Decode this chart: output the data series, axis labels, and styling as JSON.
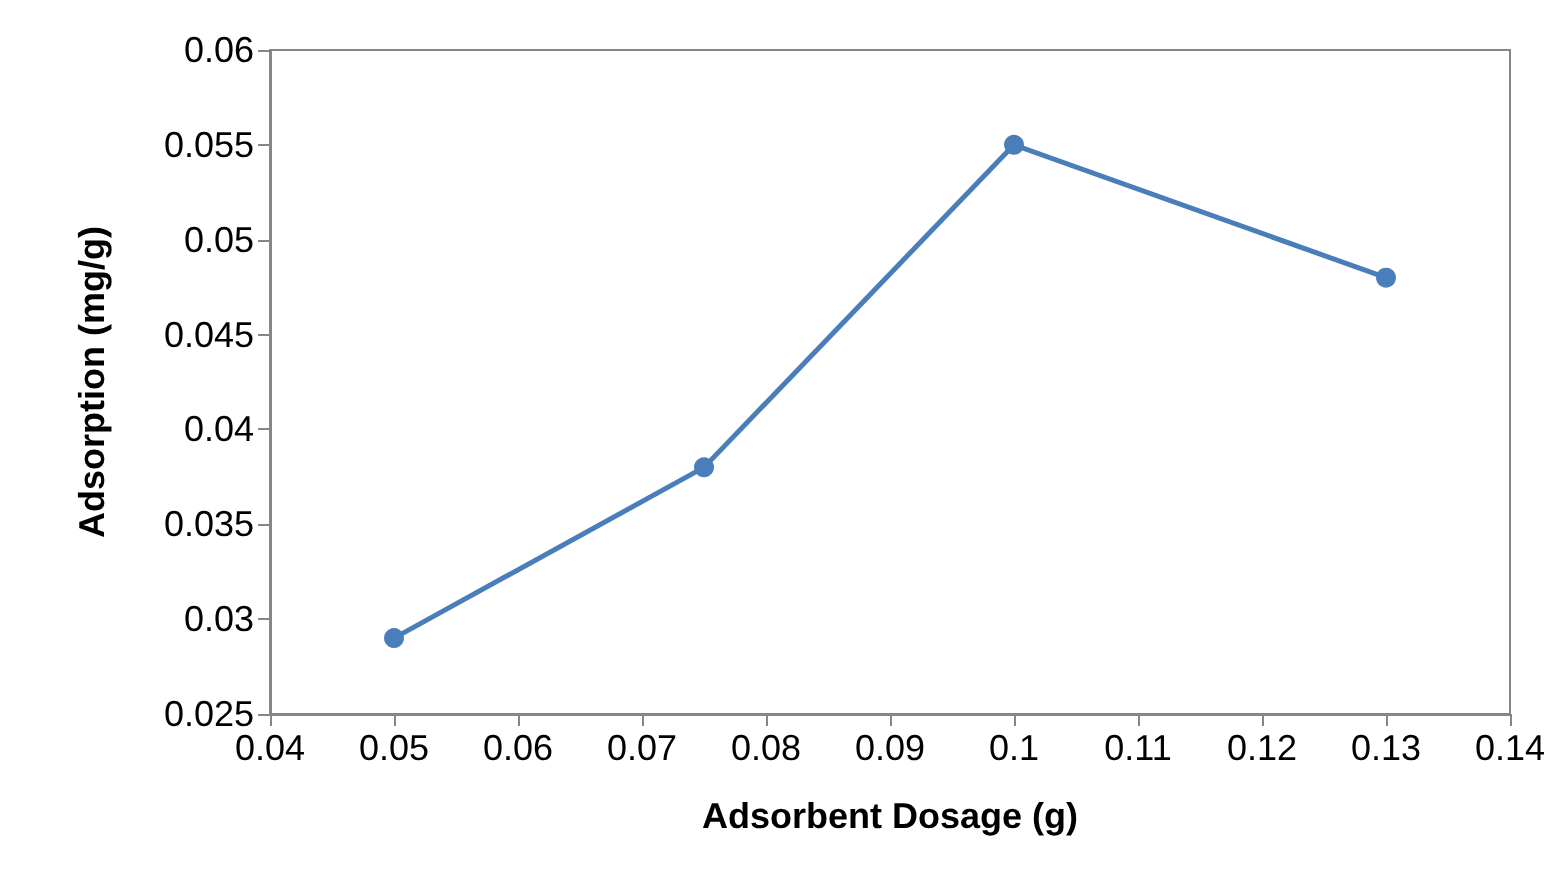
{
  "chart_data": {
    "type": "line",
    "xlabel": "Adsorbent Dosage (g)",
    "ylabel": "Adsorption (mg/g)",
    "x": [
      0.05,
      0.075,
      0.1,
      0.13
    ],
    "series": [
      {
        "color": "#4a7ebb",
        "values": [
          0.029,
          0.038,
          0.055,
          0.048
        ]
      }
    ],
    "xlim": [
      0.04,
      0.14
    ],
    "xticks": [
      0.04,
      0.05,
      0.06,
      0.07,
      0.08,
      0.09,
      0.1,
      0.11,
      0.12,
      0.13,
      0.14
    ],
    "ylim": [
      0.025,
      0.06
    ],
    "yticks": [
      0.025,
      0.03,
      0.035,
      0.04,
      0.045,
      0.05,
      0.055,
      0.06
    ],
    "grid": false,
    "marker": "circle",
    "line_style": "solid"
  }
}
